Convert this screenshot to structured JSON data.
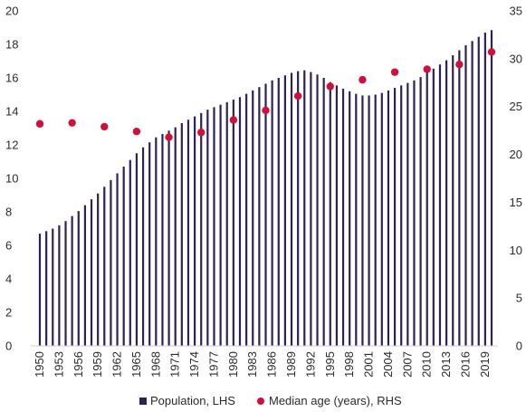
{
  "chart_data": {
    "type": "bar+scatter",
    "x": [
      1950,
      1951,
      1952,
      1953,
      1954,
      1955,
      1956,
      1957,
      1958,
      1959,
      1960,
      1961,
      1962,
      1963,
      1964,
      1965,
      1966,
      1967,
      1968,
      1969,
      1970,
      1971,
      1972,
      1973,
      1974,
      1975,
      1976,
      1977,
      1978,
      1979,
      1980,
      1981,
      1982,
      1983,
      1984,
      1985,
      1986,
      1987,
      1988,
      1989,
      1990,
      1991,
      1992,
      1993,
      1994,
      1995,
      1996,
      1997,
      1998,
      1999,
      2000,
      2001,
      2002,
      2003,
      2004,
      2005,
      2006,
      2007,
      2008,
      2009,
      2010,
      2011,
      2012,
      2013,
      2014,
      2015,
      2016,
      2017,
      2018,
      2019,
      2020
    ],
    "x_tick_labels": [
      "1950",
      "1953",
      "1956",
      "1959",
      "1962",
      "1965",
      "1968",
      "1971",
      "1974",
      "1977",
      "1980",
      "1983",
      "1986",
      "1989",
      "1992",
      "1995",
      "1998",
      "2001",
      "2004",
      "2007",
      "2010",
      "2013",
      "2016",
      "2019"
    ],
    "series": [
      {
        "name": "Population, LHS",
        "kind": "bar",
        "axis": "left",
        "color": "#2e2157",
        "values": [
          6.7,
          6.85,
          7.0,
          7.2,
          7.45,
          7.75,
          8.05,
          8.4,
          8.75,
          9.1,
          9.5,
          9.9,
          10.3,
          10.7,
          11.1,
          11.5,
          11.85,
          12.15,
          12.45,
          12.65,
          12.85,
          13.05,
          13.3,
          13.5,
          13.7,
          13.9,
          14.1,
          14.25,
          14.4,
          14.55,
          14.7,
          14.85,
          15.05,
          15.25,
          15.45,
          15.65,
          15.85,
          16.0,
          16.15,
          16.3,
          16.4,
          16.45,
          16.35,
          16.2,
          16.0,
          15.75,
          15.55,
          15.35,
          15.2,
          15.05,
          14.95,
          14.95,
          15.0,
          15.1,
          15.25,
          15.4,
          15.55,
          15.7,
          15.85,
          16.05,
          16.3,
          16.55,
          16.8,
          17.05,
          17.35,
          17.65,
          17.95,
          18.2,
          18.45,
          18.7,
          18.85
        ]
      },
      {
        "name": "Median age (years), RHS",
        "kind": "scatter",
        "axis": "right",
        "color": "#d0103a",
        "x": [
          1950,
          1955,
          1960,
          1965,
          1970,
          1975,
          1980,
          1985,
          1990,
          1995,
          2000,
          2005,
          2010,
          2015,
          2020
        ],
        "values": [
          23.2,
          23.3,
          22.9,
          22.4,
          21.8,
          22.3,
          23.6,
          24.6,
          26.1,
          27.1,
          27.8,
          28.6,
          28.9,
          29.4,
          30.7
        ]
      }
    ],
    "left_axis": {
      "ylim": [
        0,
        20
      ],
      "ticks": [
        "0",
        "2",
        "4",
        "6",
        "8",
        "10",
        "12",
        "14",
        "16",
        "18",
        "20"
      ]
    },
    "right_axis": {
      "ylim": [
        0,
        35
      ],
      "ticks": [
        "0",
        "5",
        "10",
        "15",
        "20",
        "25",
        "30",
        "35"
      ]
    },
    "grid": false,
    "legend_position": "bottom",
    "legend": [
      "Population, LHS",
      "Median age (years), RHS"
    ]
  }
}
